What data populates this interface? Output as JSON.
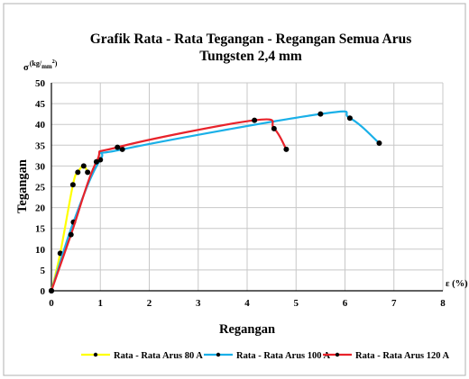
{
  "chart_data": {
    "type": "line",
    "title": "Grafik Rata - Rata Tegangan - Regangan Semua Arus",
    "subtitle": "Tungsten 2,4 mm",
    "xlabel": "Regangan",
    "ylabel": "Tegangan",
    "x_unit": "ε (%)",
    "y_unit_symbol": "σ",
    "y_unit_num": "kg",
    "y_unit_den": "mm",
    "y_unit_exp": "2",
    "xlim": [
      0,
      8
    ],
    "ylim": [
      0,
      50
    ],
    "x_ticks": [
      0,
      1,
      2,
      3,
      4,
      5,
      6,
      7,
      8
    ],
    "y_ticks": [
      0,
      5,
      10,
      15,
      20,
      25,
      30,
      35,
      40,
      45,
      50
    ],
    "grid": true,
    "legend_position": "bottom",
    "series": [
      {
        "name": "Rata - Rata Arus 80 A",
        "color": "#ffff00",
        "points": [
          [
            0,
            0
          ],
          [
            0.18,
            9
          ],
          [
            0.44,
            25.5
          ],
          [
            0.54,
            28.5
          ],
          [
            0.66,
            30
          ],
          [
            0.74,
            28.5
          ]
        ]
      },
      {
        "name": "Rata - Rata Arus 100 A",
        "color": "#1ab0e8",
        "points": [
          [
            0,
            0
          ],
          [
            0.45,
            16.5
          ],
          [
            1.0,
            31.5
          ],
          [
            1.45,
            34
          ],
          [
            5.5,
            42.5
          ],
          [
            6.1,
            41.5
          ],
          [
            6.7,
            35.5
          ]
        ]
      },
      {
        "name": "Rata - Rata Arus 120 A",
        "color": "#e8222a",
        "points": [
          [
            0,
            0
          ],
          [
            0.4,
            13.5
          ],
          [
            0.92,
            31
          ],
          [
            1.35,
            34.5
          ],
          [
            4.15,
            41
          ],
          [
            4.55,
            39
          ],
          [
            4.8,
            34
          ]
        ]
      }
    ]
  }
}
